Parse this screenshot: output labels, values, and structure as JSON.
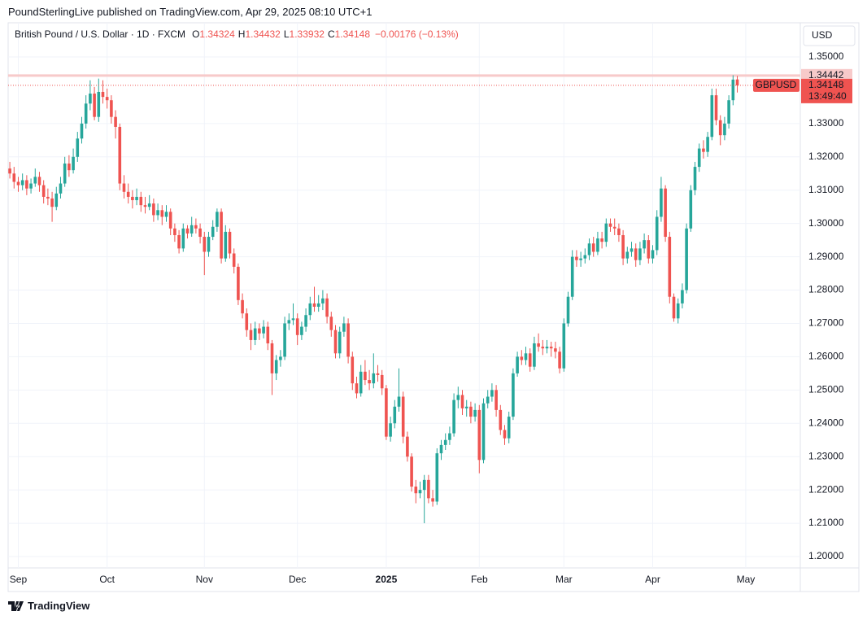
{
  "header": "PoundSterlingLive published on TradingView.com, Apr 29, 2025 08:10 UTC+1",
  "footer": "TradingView",
  "chart_data": {
    "type": "candlestick",
    "title": "British Pound / U.S. Dollar · 1D · FXCM",
    "ohlc_labels": [
      "O",
      "H",
      "L",
      "C"
    ],
    "change": "−0.00176 (−0.13%)",
    "currency": "USD",
    "symbol": "GBPUSD",
    "countdown": "13:49:40",
    "hline": {
      "value": 1.34442,
      "label": "1.34442",
      "color": "#f7caca"
    },
    "up_color": "#26a69a",
    "down_color": "#ef5350",
    "grid": true,
    "xlim": [
      -0.4,
      186.9
    ],
    "ylim": [
      1.19658,
      1.36026
    ],
    "xticks": [
      {
        "value": 2,
        "label": "Sep"
      },
      {
        "value": 23,
        "label": "Oct"
      },
      {
        "value": 46,
        "label": "Nov"
      },
      {
        "value": 68,
        "label": "Dec"
      },
      {
        "value": 89,
        "label": "2025"
      },
      {
        "value": 111,
        "label": "Feb"
      },
      {
        "value": 131,
        "label": "Mar"
      },
      {
        "value": 152,
        "label": "Apr"
      },
      {
        "value": 174,
        "label": "May"
      }
    ],
    "yticks": [
      {
        "value": 1.2,
        "label": "1.20000"
      },
      {
        "value": 1.21,
        "label": "1.21000"
      },
      {
        "value": 1.22,
        "label": "1.22000"
      },
      {
        "value": 1.23,
        "label": "1.23000"
      },
      {
        "value": 1.24,
        "label": "1.24000"
      },
      {
        "value": 1.25,
        "label": "1.25000"
      },
      {
        "value": 1.26,
        "label": "1.26000"
      },
      {
        "value": 1.27,
        "label": "1.27000"
      },
      {
        "value": 1.28,
        "label": "1.28000"
      },
      {
        "value": 1.29,
        "label": "1.29000"
      },
      {
        "value": 1.3,
        "label": "1.30000"
      },
      {
        "value": 1.31,
        "label": "1.31000"
      },
      {
        "value": 1.32,
        "label": "1.32000"
      },
      {
        "value": 1.33,
        "label": "1.33000"
      },
      {
        "value": 1.35,
        "label": "1.35000"
      }
    ],
    "ohlc": [
      [
        1.3165,
        1.3185,
        1.3135,
        1.315
      ],
      [
        1.315,
        1.317,
        1.3105,
        1.3125
      ],
      [
        1.3125,
        1.314,
        1.3095,
        1.3115
      ],
      [
        1.3115,
        1.315,
        1.31,
        1.313
      ],
      [
        1.313,
        1.3145,
        1.3085,
        1.3105
      ],
      [
        1.3105,
        1.3135,
        1.309,
        1.312
      ],
      [
        1.312,
        1.3165,
        1.311,
        1.314
      ],
      [
        1.314,
        1.3155,
        1.3095,
        1.3115
      ],
      [
        1.3115,
        1.313,
        1.306,
        1.308
      ],
      [
        1.308,
        1.3105,
        1.3055,
        1.3075
      ],
      [
        1.3075,
        1.3095,
        1.3005,
        1.305
      ],
      [
        1.305,
        1.311,
        1.304,
        1.309
      ],
      [
        1.309,
        1.314,
        1.3075,
        1.312
      ],
      [
        1.312,
        1.32,
        1.311,
        1.318
      ],
      [
        1.318,
        1.3205,
        1.314,
        1.316
      ],
      [
        1.316,
        1.3225,
        1.315,
        1.32
      ],
      [
        1.32,
        1.3275,
        1.3185,
        1.3255
      ],
      [
        1.3255,
        1.332,
        1.324,
        1.33
      ],
      [
        1.33,
        1.3385,
        1.3285,
        1.336
      ],
      [
        1.336,
        1.343,
        1.334,
        1.339
      ],
      [
        1.339,
        1.341,
        1.331,
        1.332
      ],
      [
        1.332,
        1.3435,
        1.3305,
        1.3395
      ],
      [
        1.3395,
        1.343,
        1.336,
        1.338
      ],
      [
        1.338,
        1.3405,
        1.3345,
        1.337
      ],
      [
        1.337,
        1.3385,
        1.33,
        1.332
      ],
      [
        1.332,
        1.334,
        1.3255,
        1.329
      ],
      [
        1.329,
        1.33,
        1.31,
        1.312
      ],
      [
        1.312,
        1.3145,
        1.3075,
        1.3095
      ],
      [
        1.3095,
        1.312,
        1.306,
        1.308
      ],
      [
        1.308,
        1.31,
        1.3045,
        1.307
      ],
      [
        1.307,
        1.3105,
        1.3055,
        1.308
      ],
      [
        1.308,
        1.3095,
        1.3035,
        1.3055
      ],
      [
        1.3055,
        1.308,
        1.303,
        1.305
      ],
      [
        1.305,
        1.3085,
        1.304,
        1.306
      ],
      [
        1.306,
        1.3075,
        1.3005,
        1.3025
      ],
      [
        1.3025,
        1.306,
        1.301,
        1.304
      ],
      [
        1.304,
        1.3055,
        1.2995,
        1.302
      ],
      [
        1.302,
        1.3055,
        1.3005,
        1.3035
      ],
      [
        1.3035,
        1.3045,
        1.2965,
        1.2985
      ],
      [
        1.2985,
        1.3,
        1.2945,
        1.2965
      ],
      [
        1.2965,
        1.298,
        1.291,
        1.2925
      ],
      [
        1.2925,
        1.3,
        1.2915,
        1.2985
      ],
      [
        1.2985,
        1.2995,
        1.2955,
        1.297
      ],
      [
        1.297,
        1.302,
        1.296,
        1.2995
      ],
      [
        1.2995,
        1.3015,
        1.297,
        1.2985
      ],
      [
        1.2985,
        1.3,
        1.294,
        1.296
      ],
      [
        1.296,
        1.2975,
        1.2845,
        1.2915
      ],
      [
        1.2915,
        1.2975,
        1.29,
        1.296
      ],
      [
        1.296,
        1.301,
        1.295,
        1.299
      ],
      [
        1.299,
        1.3045,
        1.2975,
        1.3035
      ],
      [
        1.3035,
        1.3045,
        1.288,
        1.2895
      ],
      [
        1.2895,
        1.2995,
        1.2885,
        1.2975
      ],
      [
        1.2975,
        1.2985,
        1.2895,
        1.291
      ],
      [
        1.291,
        1.2925,
        1.285,
        1.287
      ],
      [
        1.287,
        1.288,
        1.2755,
        1.277
      ],
      [
        1.277,
        1.279,
        1.2715,
        1.273
      ],
      [
        1.273,
        1.2745,
        1.266,
        1.268
      ],
      [
        1.268,
        1.27,
        1.262,
        1.265
      ],
      [
        1.265,
        1.2705,
        1.2635,
        1.2685
      ],
      [
        1.2685,
        1.27,
        1.265,
        1.267
      ],
      [
        1.267,
        1.271,
        1.2655,
        1.269
      ],
      [
        1.269,
        1.2705,
        1.262,
        1.264
      ],
      [
        1.264,
        1.265,
        1.2485,
        1.255
      ],
      [
        1.255,
        1.2605,
        1.253,
        1.259
      ],
      [
        1.259,
        1.262,
        1.257,
        1.26
      ],
      [
        1.26,
        1.272,
        1.259,
        1.27
      ],
      [
        1.27,
        1.273,
        1.268,
        1.271
      ],
      [
        1.271,
        1.276,
        1.2695,
        1.2715
      ],
      [
        1.2715,
        1.273,
        1.2635,
        1.2665
      ],
      [
        1.2665,
        1.2705,
        1.265,
        1.269
      ],
      [
        1.269,
        1.2745,
        1.2675,
        1.2725
      ],
      [
        1.2725,
        1.278,
        1.271,
        1.276
      ],
      [
        1.276,
        1.281,
        1.2735,
        1.275
      ],
      [
        1.275,
        1.2785,
        1.2735,
        1.276
      ],
      [
        1.276,
        1.28,
        1.274,
        1.2775
      ],
      [
        1.2775,
        1.279,
        1.27,
        1.272
      ],
      [
        1.272,
        1.2735,
        1.266,
        1.268
      ],
      [
        1.268,
        1.2695,
        1.2595,
        1.261
      ],
      [
        1.261,
        1.269,
        1.2595,
        1.2675
      ],
      [
        1.2675,
        1.272,
        1.266,
        1.27
      ],
      [
        1.27,
        1.2715,
        1.258,
        1.26
      ],
      [
        1.26,
        1.2615,
        1.25,
        1.252
      ],
      [
        1.252,
        1.254,
        1.2475,
        1.249
      ],
      [
        1.249,
        1.2575,
        1.248,
        1.2555
      ],
      [
        1.2555,
        1.259,
        1.2515,
        1.253
      ],
      [
        1.253,
        1.256,
        1.25,
        1.252
      ],
      [
        1.252,
        1.261,
        1.2505,
        1.255
      ],
      [
        1.255,
        1.2575,
        1.2525,
        1.2545
      ],
      [
        1.2545,
        1.256,
        1.2485,
        1.2505
      ],
      [
        1.2505,
        1.2515,
        1.235,
        1.236
      ],
      [
        1.236,
        1.242,
        1.2345,
        1.24
      ],
      [
        1.24,
        1.247,
        1.2385,
        1.245
      ],
      [
        1.245,
        1.2565,
        1.2435,
        1.248
      ],
      [
        1.248,
        1.2495,
        1.234,
        1.236
      ],
      [
        1.236,
        1.2375,
        1.2285,
        1.23
      ],
      [
        1.23,
        1.231,
        1.2195,
        1.221
      ],
      [
        1.221,
        1.223,
        1.216,
        1.219
      ],
      [
        1.219,
        1.2225,
        1.2175,
        1.22
      ],
      [
        1.22,
        1.2245,
        1.21,
        1.223
      ],
      [
        1.223,
        1.2245,
        1.216,
        1.2175
      ],
      [
        1.2175,
        1.22,
        1.215,
        1.2165
      ],
      [
        1.2165,
        1.2325,
        1.2155,
        1.231
      ],
      [
        1.231,
        1.235,
        1.229,
        1.2335
      ],
      [
        1.2335,
        1.237,
        1.232,
        1.235
      ],
      [
        1.235,
        1.239,
        1.2335,
        1.237
      ],
      [
        1.237,
        1.249,
        1.236,
        1.247
      ],
      [
        1.247,
        1.251,
        1.2445,
        1.2485
      ],
      [
        1.2485,
        1.25,
        1.2425,
        1.2445
      ],
      [
        1.2445,
        1.247,
        1.242,
        1.245
      ],
      [
        1.245,
        1.2465,
        1.24,
        1.242
      ],
      [
        1.242,
        1.246,
        1.2405,
        1.244
      ],
      [
        1.244,
        1.2455,
        1.225,
        1.229
      ],
      [
        1.229,
        1.2475,
        1.228,
        1.246
      ],
      [
        1.246,
        1.25,
        1.2445,
        1.248
      ],
      [
        1.248,
        1.252,
        1.2465,
        1.25
      ],
      [
        1.25,
        1.2515,
        1.242,
        1.244
      ],
      [
        1.244,
        1.2455,
        1.2365,
        1.238
      ],
      [
        1.238,
        1.2395,
        1.2335,
        1.2355
      ],
      [
        1.2355,
        1.2435,
        1.234,
        1.242
      ],
      [
        1.242,
        1.2565,
        1.241,
        1.255
      ],
      [
        1.255,
        1.2615,
        1.254,
        1.26
      ],
      [
        1.26,
        1.262,
        1.2575,
        1.259
      ],
      [
        1.259,
        1.263,
        1.2575,
        1.261
      ],
      [
        1.261,
        1.2625,
        1.2555,
        1.257
      ],
      [
        1.257,
        1.266,
        1.256,
        1.264
      ],
      [
        1.264,
        1.267,
        1.2615,
        1.263
      ],
      [
        1.263,
        1.265,
        1.2605,
        1.2625
      ],
      [
        1.2625,
        1.265,
        1.261,
        1.263
      ],
      [
        1.263,
        1.2645,
        1.26,
        1.2625
      ],
      [
        1.2625,
        1.2645,
        1.2595,
        1.2615
      ],
      [
        1.2615,
        1.263,
        1.255,
        1.2565
      ],
      [
        1.2565,
        1.2715,
        1.2555,
        1.27
      ],
      [
        1.27,
        1.2795,
        1.269,
        1.278
      ],
      [
        1.278,
        1.292,
        1.277,
        1.29
      ],
      [
        1.29,
        1.292,
        1.287,
        1.289
      ],
      [
        1.289,
        1.2915,
        1.287,
        1.2895
      ],
      [
        1.2895,
        1.2925,
        1.288,
        1.2905
      ],
      [
        1.2905,
        1.2955,
        1.289,
        1.294
      ],
      [
        1.294,
        1.296,
        1.29,
        1.2915
      ],
      [
        1.2915,
        1.2975,
        1.2905,
        1.2955
      ],
      [
        1.2955,
        1.2975,
        1.2925,
        1.2945
      ],
      [
        1.2945,
        1.3015,
        1.293,
        1.3
      ],
      [
        1.3,
        1.3015,
        1.2975,
        1.299
      ],
      [
        1.299,
        1.3015,
        1.2965,
        1.2985
      ],
      [
        1.2985,
        1.3,
        1.2945,
        1.2965
      ],
      [
        1.2965,
        1.298,
        1.2875,
        1.2895
      ],
      [
        1.2895,
        1.293,
        1.288,
        1.2915
      ],
      [
        1.2915,
        1.2945,
        1.29,
        1.2925
      ],
      [
        1.2925,
        1.294,
        1.287,
        1.289
      ],
      [
        1.289,
        1.2945,
        1.2875,
        1.2925
      ],
      [
        1.2925,
        1.297,
        1.291,
        1.295
      ],
      [
        1.295,
        1.2965,
        1.288,
        1.2895
      ],
      [
        1.2895,
        1.2935,
        1.288,
        1.292
      ],
      [
        1.292,
        1.304,
        1.2905,
        1.302
      ],
      [
        1.302,
        1.314,
        1.3005,
        1.3105
      ],
      [
        1.3105,
        1.3115,
        1.2945,
        1.296
      ],
      [
        1.296,
        1.2975,
        1.276,
        1.278
      ],
      [
        1.278,
        1.279,
        1.2705,
        1.2715
      ],
      [
        1.2715,
        1.2775,
        1.27,
        1.276
      ],
      [
        1.276,
        1.282,
        1.2745,
        1.28
      ],
      [
        1.28,
        1.3,
        1.279,
        1.2985
      ],
      [
        1.2985,
        1.3115,
        1.2975,
        1.31
      ],
      [
        1.31,
        1.3185,
        1.3085,
        1.317
      ],
      [
        1.317,
        1.324,
        1.3155,
        1.3225
      ],
      [
        1.3225,
        1.325,
        1.3195,
        1.3215
      ],
      [
        1.3215,
        1.3275,
        1.32,
        1.326
      ],
      [
        1.326,
        1.3405,
        1.325,
        1.3385
      ],
      [
        1.3385,
        1.3405,
        1.3295,
        1.331
      ],
      [
        1.331,
        1.3325,
        1.3235,
        1.3265
      ],
      [
        1.3265,
        1.332,
        1.325,
        1.33
      ],
      [
        1.33,
        1.3385,
        1.3285,
        1.337
      ],
      [
        1.337,
        1.3445,
        1.3355,
        1.3432
      ],
      [
        1.34324,
        1.34432,
        1.33932,
        1.34148
      ]
    ]
  }
}
